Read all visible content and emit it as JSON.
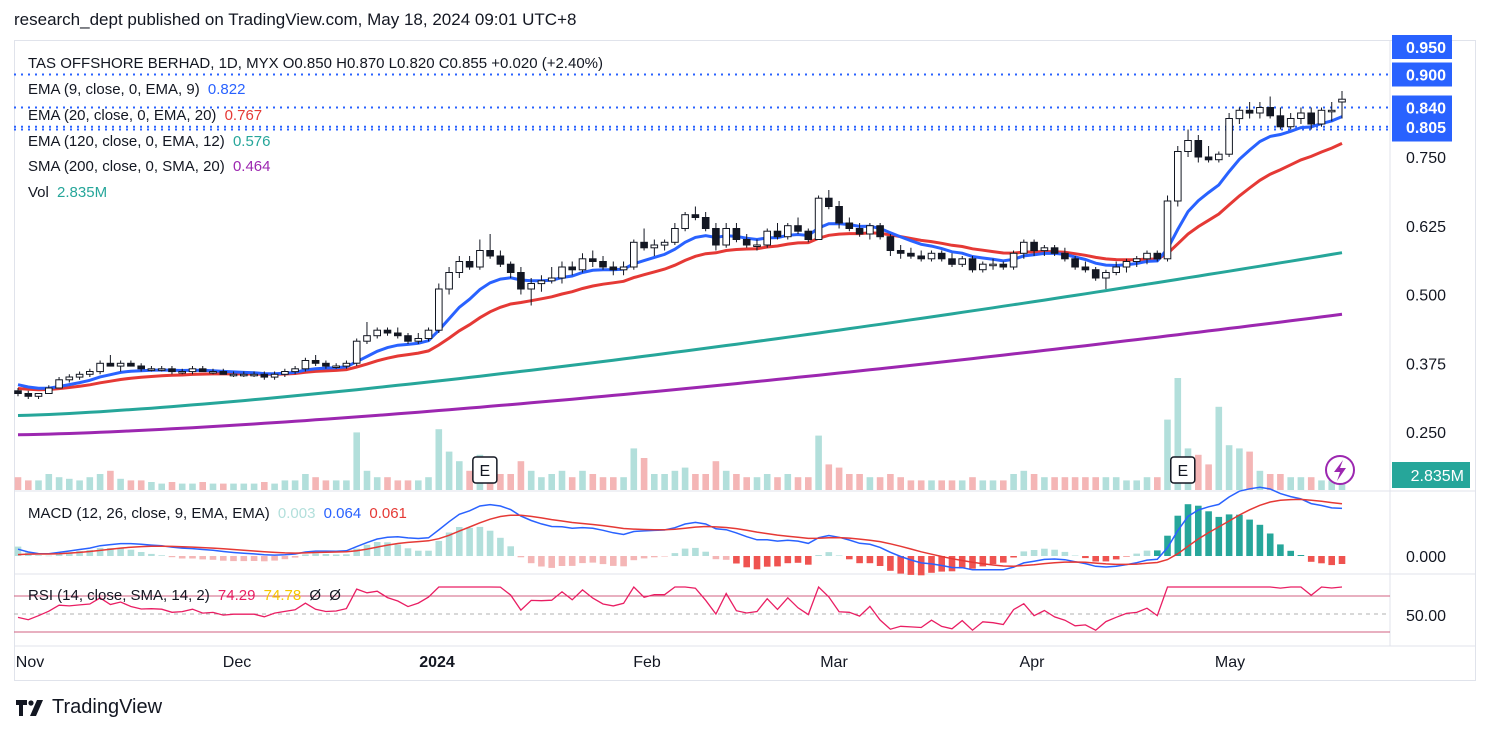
{
  "header": {
    "text": "research_dept published on TradingView.com, May 18, 2024 09:01 UTC+8"
  },
  "legend": {
    "main": "TAS OFFSHORE BERHAD, 1D, MYX  O0.850  H0.870  L0.820  C0.855  +0.020 (+2.40%)",
    "ema9": {
      "label": "EMA (9, close, 0, EMA, 9)",
      "value": "0.822"
    },
    "ema20": {
      "label": "EMA (20, close, 0, EMA, 20)",
      "value": "0.767"
    },
    "ema120": {
      "label": "EMA (120, close, 0, EMA, 12)",
      "value": "0.576"
    },
    "sma200": {
      "label": "SMA (200, close, 0, SMA, 20)",
      "value": "0.464"
    },
    "vol": {
      "label": "Vol",
      "value": "2.835M"
    },
    "macd": {
      "label": "MACD (12, 26, close, 9, EMA, EMA)",
      "hist": "0.003",
      "macd": "0.064",
      "signal": "0.061"
    },
    "rsi": {
      "label": "RSI (14, close, SMA, 14, 2)",
      "rsi": "74.29",
      "ma": "74.78",
      "extra1": "Ø",
      "extra2": "Ø"
    }
  },
  "footer": {
    "brand": "TradingView"
  },
  "colors": {
    "up": "#ffffff",
    "down": "#131722",
    "ema9": "#2962ff",
    "ema20": "#e53935",
    "ema120": "#26a69a",
    "sma200": "#9c27b0",
    "volUp": "#b2dfdb",
    "volDown": "#f4b6b6",
    "macdLine": "#2962ff",
    "signalLine": "#e53935",
    "rsiLine": "#e91e63",
    "rsiMa": "#f7c600",
    "hline": "#2962ff"
  },
  "chart_data": {
    "type": "candlestick",
    "price_axis": {
      "ticks": [
        "0.250",
        "0.375",
        "0.500",
        "0.625",
        "0.750",
        "0.800",
        "0.805",
        "0.840",
        "0.900",
        "0.950"
      ],
      "range": [
        0.2,
        0.96
      ]
    },
    "time_axis": {
      "labels": [
        "Nov",
        "Dec",
        "2024",
        "Feb",
        "Mar",
        "Apr",
        "May"
      ]
    },
    "horizontal_levels": [
      "0.900",
      "0.840",
      "0.805",
      "0.800"
    ],
    "vol_axis_label": "2.835M",
    "macd_axis_label": "0.000",
    "rsi_axis_label": "50.00",
    "earnings_markers": [
      "E",
      "E"
    ],
    "candles": [
      [
        0.325,
        0.33,
        0.315,
        0.32
      ],
      [
        0.32,
        0.325,
        0.31,
        0.315
      ],
      [
        0.315,
        0.32,
        0.31,
        0.32
      ],
      [
        0.32,
        0.335,
        0.32,
        0.33
      ],
      [
        0.33,
        0.35,
        0.33,
        0.345
      ],
      [
        0.345,
        0.355,
        0.34,
        0.35
      ],
      [
        0.35,
        0.36,
        0.345,
        0.355
      ],
      [
        0.355,
        0.365,
        0.35,
        0.36
      ],
      [
        0.36,
        0.38,
        0.355,
        0.375
      ],
      [
        0.375,
        0.39,
        0.37,
        0.37
      ],
      [
        0.37,
        0.38,
        0.36,
        0.375
      ],
      [
        0.375,
        0.38,
        0.37,
        0.37
      ],
      [
        0.37,
        0.375,
        0.36,
        0.365
      ],
      [
        0.365,
        0.37,
        0.36,
        0.365
      ],
      [
        0.365,
        0.37,
        0.36,
        0.365
      ],
      [
        0.365,
        0.37,
        0.355,
        0.36
      ],
      [
        0.36,
        0.365,
        0.355,
        0.36
      ],
      [
        0.36,
        0.37,
        0.355,
        0.365
      ],
      [
        0.365,
        0.37,
        0.36,
        0.36
      ],
      [
        0.36,
        0.365,
        0.355,
        0.36
      ],
      [
        0.36,
        0.365,
        0.355,
        0.355
      ],
      [
        0.355,
        0.36,
        0.35,
        0.355
      ],
      [
        0.355,
        0.36,
        0.35,
        0.355
      ],
      [
        0.355,
        0.36,
        0.35,
        0.355
      ],
      [
        0.355,
        0.36,
        0.345,
        0.35
      ],
      [
        0.35,
        0.36,
        0.345,
        0.355
      ],
      [
        0.355,
        0.365,
        0.35,
        0.36
      ],
      [
        0.36,
        0.37,
        0.355,
        0.365
      ],
      [
        0.365,
        0.385,
        0.36,
        0.38
      ],
      [
        0.38,
        0.39,
        0.37,
        0.375
      ],
      [
        0.375,
        0.38,
        0.365,
        0.37
      ],
      [
        0.37,
        0.375,
        0.365,
        0.37
      ],
      [
        0.37,
        0.38,
        0.365,
        0.375
      ],
      [
        0.375,
        0.42,
        0.37,
        0.415
      ],
      [
        0.415,
        0.45,
        0.41,
        0.425
      ],
      [
        0.425,
        0.44,
        0.42,
        0.435
      ],
      [
        0.435,
        0.44,
        0.425,
        0.43
      ],
      [
        0.43,
        0.44,
        0.42,
        0.425
      ],
      [
        0.425,
        0.43,
        0.41,
        0.415
      ],
      [
        0.415,
        0.43,
        0.41,
        0.42
      ],
      [
        0.42,
        0.44,
        0.415,
        0.435
      ],
      [
        0.435,
        0.52,
        0.43,
        0.51
      ],
      [
        0.51,
        0.55,
        0.5,
        0.54
      ],
      [
        0.54,
        0.57,
        0.53,
        0.56
      ],
      [
        0.56,
        0.57,
        0.545,
        0.55
      ],
      [
        0.55,
        0.6,
        0.545,
        0.58
      ],
      [
        0.58,
        0.61,
        0.565,
        0.57
      ],
      [
        0.57,
        0.58,
        0.55,
        0.555
      ],
      [
        0.555,
        0.56,
        0.53,
        0.54
      ],
      [
        0.54,
        0.55,
        0.5,
        0.51
      ],
      [
        0.51,
        0.53,
        0.48,
        0.52
      ],
      [
        0.52,
        0.535,
        0.505,
        0.525
      ],
      [
        0.525,
        0.55,
        0.52,
        0.53
      ],
      [
        0.53,
        0.56,
        0.52,
        0.55
      ],
      [
        0.55,
        0.56,
        0.535,
        0.545
      ],
      [
        0.545,
        0.575,
        0.54,
        0.565
      ],
      [
        0.565,
        0.58,
        0.55,
        0.56
      ],
      [
        0.56,
        0.57,
        0.545,
        0.55
      ],
      [
        0.55,
        0.56,
        0.535,
        0.545
      ],
      [
        0.545,
        0.56,
        0.535,
        0.55
      ],
      [
        0.55,
        0.6,
        0.545,
        0.595
      ],
      [
        0.595,
        0.62,
        0.58,
        0.585
      ],
      [
        0.585,
        0.6,
        0.57,
        0.59
      ],
      [
        0.59,
        0.6,
        0.58,
        0.595
      ],
      [
        0.595,
        0.63,
        0.59,
        0.62
      ],
      [
        0.62,
        0.65,
        0.615,
        0.645
      ],
      [
        0.645,
        0.66,
        0.635,
        0.64
      ],
      [
        0.64,
        0.65,
        0.615,
        0.62
      ],
      [
        0.62,
        0.63,
        0.58,
        0.59
      ],
      [
        0.59,
        0.63,
        0.585,
        0.62
      ],
      [
        0.62,
        0.63,
        0.595,
        0.6
      ],
      [
        0.6,
        0.61,
        0.585,
        0.59
      ],
      [
        0.59,
        0.6,
        0.58,
        0.59
      ],
      [
        0.59,
        0.62,
        0.585,
        0.615
      ],
      [
        0.615,
        0.63,
        0.6,
        0.605
      ],
      [
        0.605,
        0.63,
        0.6,
        0.625
      ],
      [
        0.625,
        0.64,
        0.61,
        0.615
      ],
      [
        0.615,
        0.62,
        0.595,
        0.6
      ],
      [
        0.6,
        0.68,
        0.6,
        0.675
      ],
      [
        0.675,
        0.69,
        0.655,
        0.66
      ],
      [
        0.66,
        0.67,
        0.62,
        0.63
      ],
      [
        0.63,
        0.64,
        0.615,
        0.62
      ],
      [
        0.62,
        0.63,
        0.605,
        0.61
      ],
      [
        0.61,
        0.63,
        0.6,
        0.625
      ],
      [
        0.625,
        0.63,
        0.6,
        0.605
      ],
      [
        0.605,
        0.61,
        0.57,
        0.58
      ],
      [
        0.58,
        0.59,
        0.565,
        0.575
      ],
      [
        0.575,
        0.585,
        0.565,
        0.57
      ],
      [
        0.57,
        0.58,
        0.56,
        0.565
      ],
      [
        0.565,
        0.58,
        0.56,
        0.575
      ],
      [
        0.575,
        0.58,
        0.56,
        0.565
      ],
      [
        0.565,
        0.575,
        0.55,
        0.555
      ],
      [
        0.555,
        0.57,
        0.55,
        0.565
      ],
      [
        0.565,
        0.57,
        0.54,
        0.545
      ],
      [
        0.545,
        0.56,
        0.54,
        0.555
      ],
      [
        0.555,
        0.565,
        0.545,
        0.555
      ],
      [
        0.555,
        0.56,
        0.545,
        0.55
      ],
      [
        0.55,
        0.58,
        0.545,
        0.575
      ],
      [
        0.575,
        0.6,
        0.565,
        0.595
      ],
      [
        0.595,
        0.6,
        0.57,
        0.58
      ],
      [
        0.58,
        0.59,
        0.57,
        0.585
      ],
      [
        0.585,
        0.59,
        0.57,
        0.575
      ],
      [
        0.575,
        0.585,
        0.56,
        0.565
      ],
      [
        0.565,
        0.57,
        0.545,
        0.55
      ],
      [
        0.55,
        0.56,
        0.54,
        0.545
      ],
      [
        0.545,
        0.55,
        0.525,
        0.53
      ],
      [
        0.53,
        0.545,
        0.51,
        0.54
      ],
      [
        0.54,
        0.56,
        0.535,
        0.55
      ],
      [
        0.55,
        0.565,
        0.54,
        0.56
      ],
      [
        0.56,
        0.57,
        0.55,
        0.565
      ],
      [
        0.565,
        0.58,
        0.555,
        0.575
      ],
      [
        0.575,
        0.58,
        0.56,
        0.565
      ],
      [
        0.565,
        0.68,
        0.56,
        0.67
      ],
      [
        0.67,
        0.77,
        0.66,
        0.76
      ],
      [
        0.76,
        0.8,
        0.75,
        0.78
      ],
      [
        0.78,
        0.79,
        0.74,
        0.75
      ],
      [
        0.75,
        0.77,
        0.74,
        0.745
      ],
      [
        0.745,
        0.76,
        0.74,
        0.755
      ],
      [
        0.755,
        0.83,
        0.75,
        0.82
      ],
      [
        0.82,
        0.84,
        0.81,
        0.835
      ],
      [
        0.835,
        0.85,
        0.82,
        0.83
      ],
      [
        0.83,
        0.85,
        0.82,
        0.84
      ],
      [
        0.84,
        0.86,
        0.82,
        0.825
      ],
      [
        0.825,
        0.84,
        0.8,
        0.805
      ],
      [
        0.805,
        0.83,
        0.8,
        0.82
      ],
      [
        0.82,
        0.84,
        0.81,
        0.83
      ],
      [
        0.83,
        0.84,
        0.8,
        0.81
      ],
      [
        0.81,
        0.84,
        0.805,
        0.835
      ],
      [
        0.835,
        0.85,
        0.815,
        0.835
      ],
      [
        0.85,
        0.87,
        0.82,
        0.855
      ]
    ],
    "volume": [
      0.4,
      0.3,
      0.3,
      0.5,
      0.4,
      0.35,
      0.3,
      0.4,
      0.5,
      0.6,
      0.35,
      0.3,
      0.3,
      0.25,
      0.2,
      0.25,
      0.2,
      0.2,
      0.25,
      0.2,
      0.2,
      0.2,
      0.2,
      0.2,
      0.25,
      0.2,
      0.3,
      0.3,
      0.5,
      0.4,
      0.3,
      0.3,
      0.3,
      1.8,
      0.6,
      0.4,
      0.4,
      0.3,
      0.3,
      0.3,
      0.4,
      1.9,
      1.2,
      0.9,
      0.6,
      1.1,
      0.8,
      0.5,
      0.5,
      0.9,
      0.6,
      0.4,
      0.5,
      0.6,
      0.4,
      0.6,
      0.5,
      0.4,
      0.4,
      0.4,
      1.3,
      1.0,
      0.5,
      0.5,
      0.6,
      0.7,
      0.5,
      0.5,
      0.9,
      0.6,
      0.5,
      0.4,
      0.4,
      0.5,
      0.4,
      0.5,
      0.4,
      0.4,
      1.7,
      0.8,
      0.7,
      0.5,
      0.5,
      0.4,
      0.4,
      0.5,
      0.4,
      0.3,
      0.3,
      0.3,
      0.3,
      0.3,
      0.3,
      0.4,
      0.3,
      0.3,
      0.3,
      0.5,
      0.6,
      0.5,
      0.4,
      0.4,
      0.4,
      0.4,
      0.4,
      0.4,
      0.4,
      0.4,
      0.3,
      0.3,
      0.4,
      0.4,
      2.2,
      3.5,
      1.3,
      1.1,
      0.8,
      2.6,
      1.4,
      1.3,
      1.2,
      0.6,
      0.5,
      0.5,
      0.4,
      0.4,
      0.4,
      0.3,
      0.3,
      0.3
    ],
    "macd": {
      "axis_label": "0.000",
      "hist_last": "0.003",
      "macd_last": "0.064",
      "signal_last": "0.061"
    },
    "rsi": {
      "last": "74.29",
      "ma_last": "74.78",
      "levels": [
        70,
        50,
        30
      ]
    }
  }
}
